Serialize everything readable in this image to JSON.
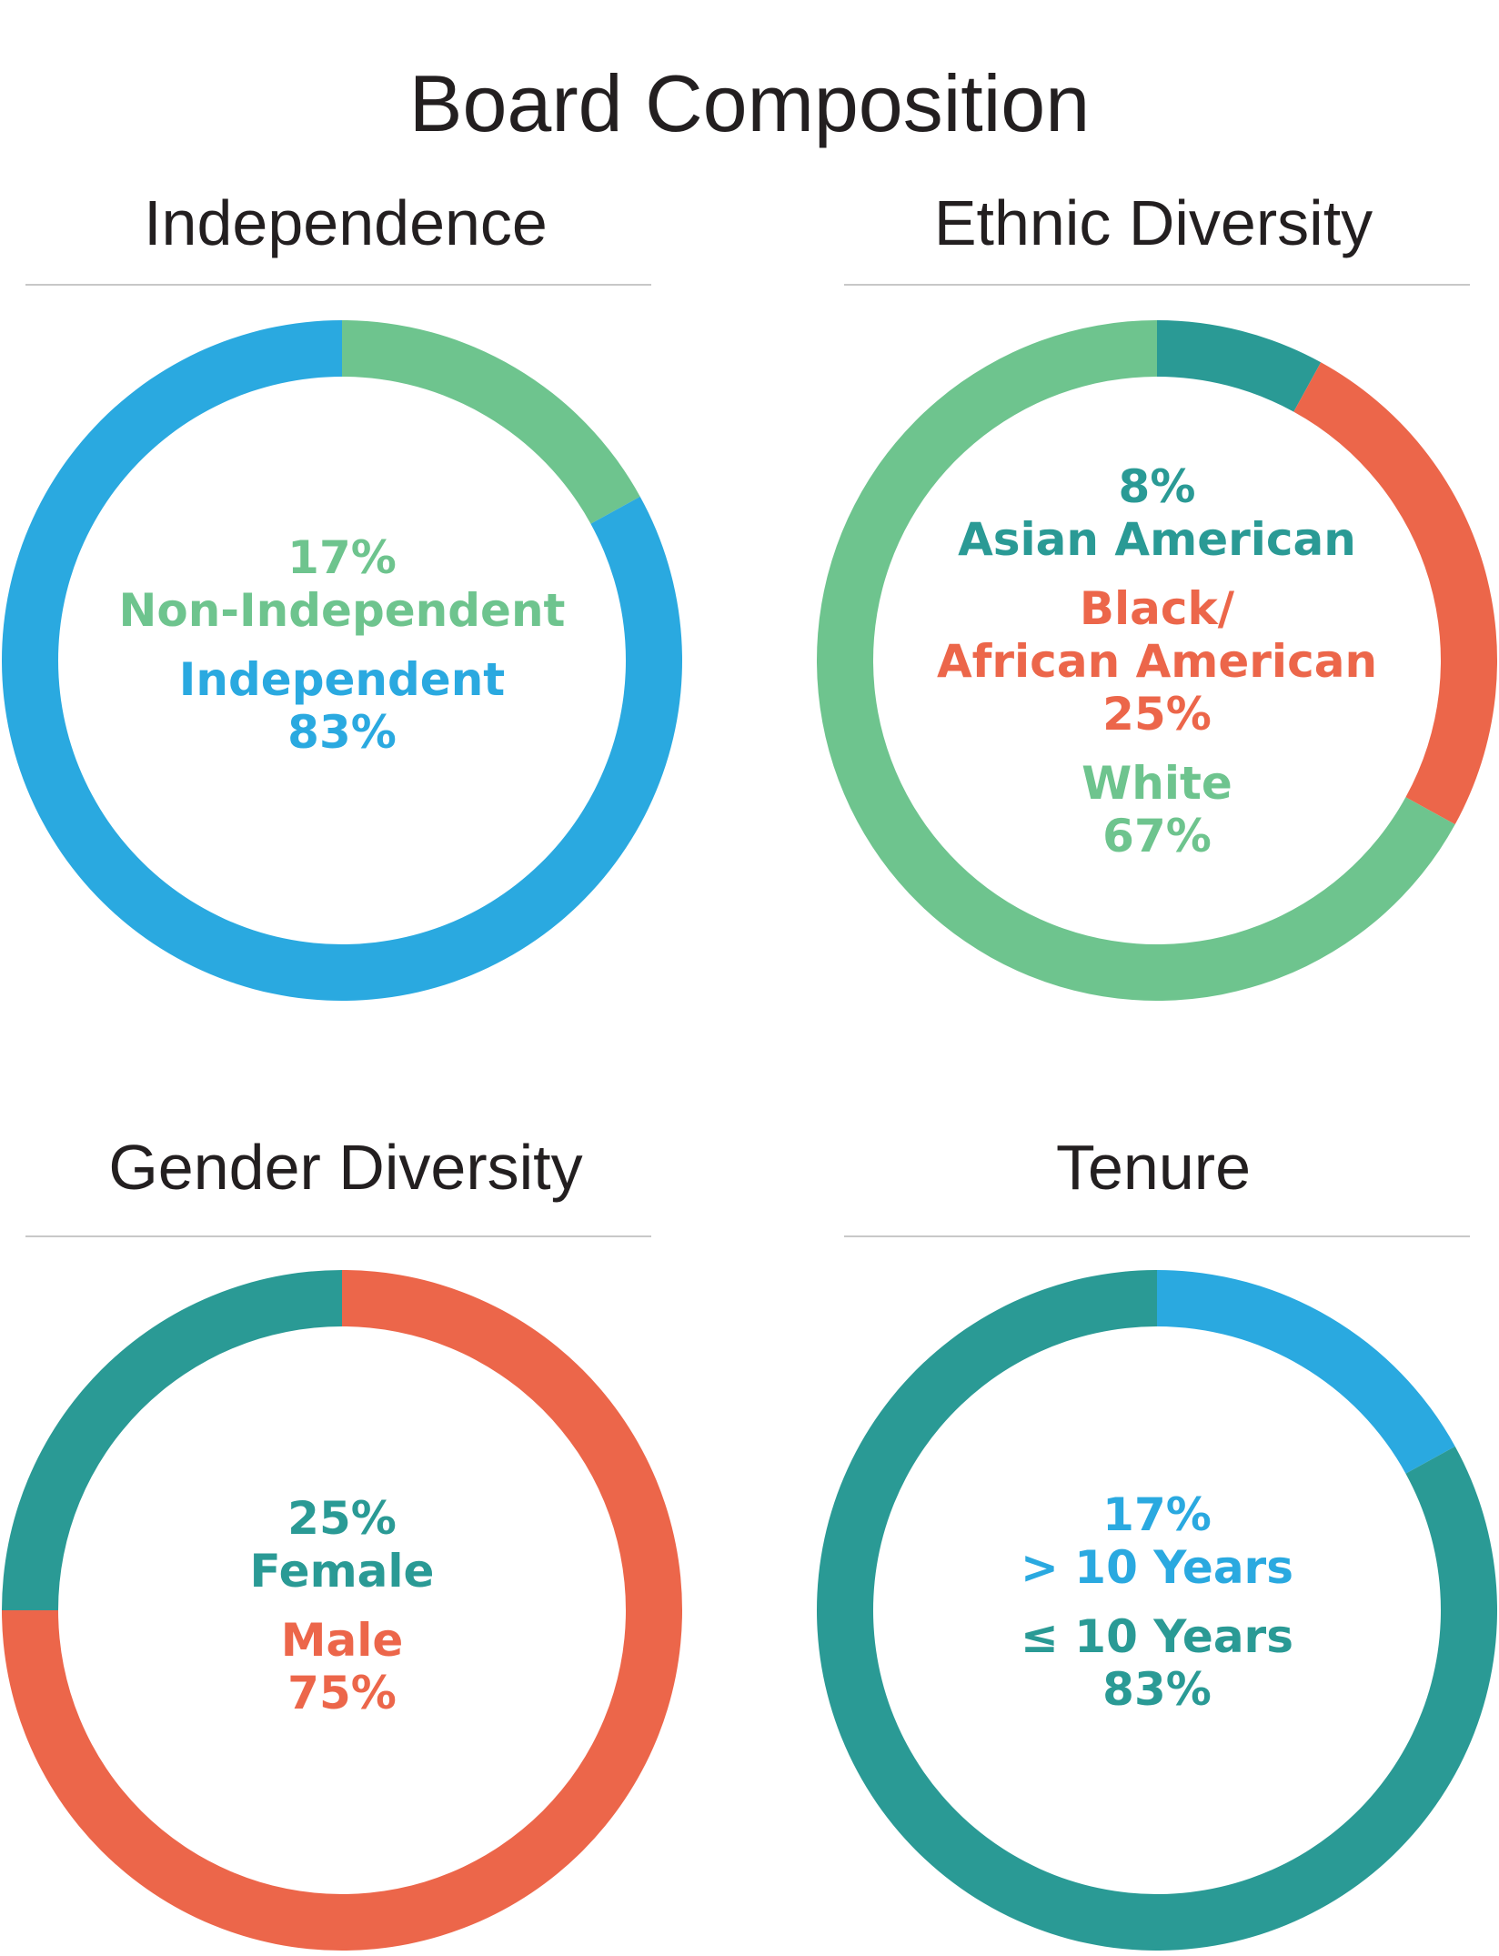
{
  "title": "Board Composition",
  "colors": {
    "blue": "#2aa9e0",
    "green": "#6ec48e",
    "teal": "#2a9a95",
    "orange": "#ec664a",
    "divider": "#c8c8c8"
  },
  "chart_data": [
    {
      "type": "pie",
      "title": "Independence",
      "categories": [
        "Non-Independent",
        "Independent"
      ],
      "values": [
        17,
        83
      ],
      "colors": [
        "#6ec48e",
        "#2aa9e0"
      ],
      "labels": [
        {
          "pct": "17%",
          "name": "Non-Independent"
        },
        {
          "name": "Independent",
          "pct": "83%"
        }
      ]
    },
    {
      "type": "pie",
      "title": "Ethnic Diversity",
      "categories": [
        "Asian American",
        "Black / African American",
        "White"
      ],
      "values": [
        8,
        25,
        67
      ],
      "colors": [
        "#2a9a95",
        "#ec664a",
        "#6ec48e"
      ],
      "labels": [
        {
          "pct": "8%",
          "name": "Asian American"
        },
        {
          "name_line1": "Black/",
          "name_line2": "African American",
          "pct": "25%"
        },
        {
          "name": "White",
          "pct": "67%"
        }
      ]
    },
    {
      "type": "pie",
      "title": "Gender Diversity",
      "categories": [
        "Male",
        "Female"
      ],
      "values": [
        75,
        25
      ],
      "colors": [
        "#ec664a",
        "#2a9a95"
      ],
      "labels": [
        {
          "pct": "25%",
          "name": "Female"
        },
        {
          "name": "Male",
          "pct": "75%"
        }
      ]
    },
    {
      "type": "pie",
      "title": "Tenure",
      "categories": [
        "> 10 Years",
        "≤ 10 Years"
      ],
      "values": [
        17,
        83
      ],
      "colors": [
        "#2aa9e0",
        "#2a9a95"
      ],
      "labels": [
        {
          "pct": "17%",
          "name": "> 10 Years"
        },
        {
          "name": "≤ 10 Years",
          "pct": "83%"
        }
      ]
    }
  ]
}
